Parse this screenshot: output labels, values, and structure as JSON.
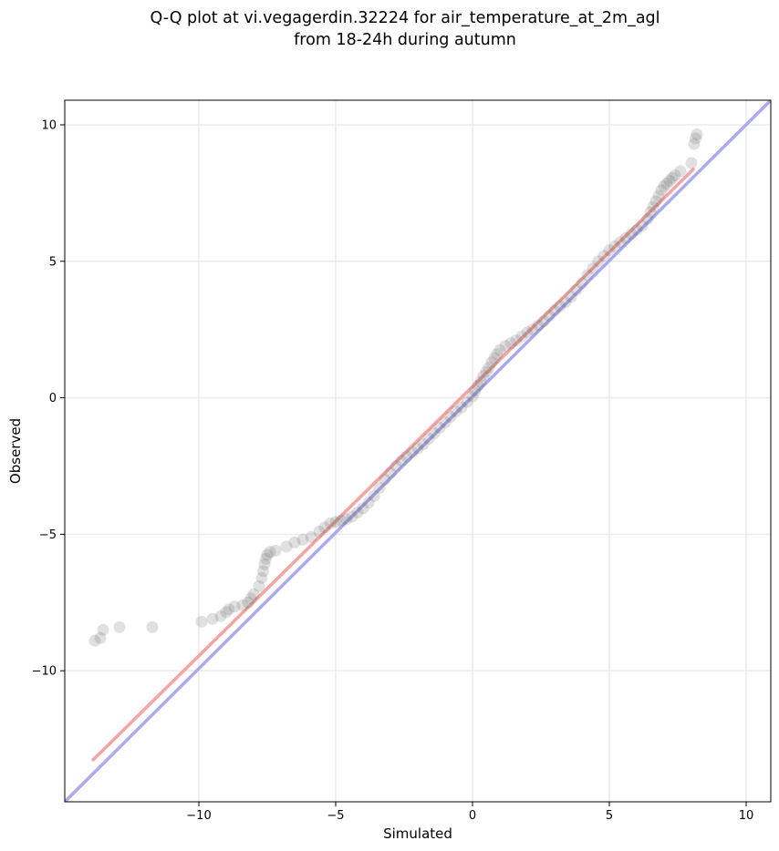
{
  "chart_data": {
    "type": "scatter",
    "title_line1": "Q-Q plot at vi.vegagerdin.32224 for air_temperature_at_2m_agl",
    "title_line2": "from 18-24h during autumn",
    "xlabel": "Simulated",
    "ylabel": "Observed",
    "xlim": [
      -14.9,
      10.9
    ],
    "ylim": [
      -14.8,
      10.9
    ],
    "grid": true,
    "x_ticks": [
      -10,
      -5,
      0,
      5,
      10
    ],
    "x_tick_labels": [
      "−10",
      "−5",
      "0",
      "5",
      "10"
    ],
    "y_ticks": [
      -10,
      -5,
      0,
      5,
      10
    ],
    "y_tick_labels": [
      "−10",
      "−5",
      "0",
      "5",
      "10"
    ],
    "reference_line": {
      "name": "identity",
      "color": "#aaaaf0",
      "points": [
        [
          -14.9,
          -14.8
        ],
        [
          10.9,
          10.9
        ]
      ]
    },
    "fit_line": {
      "name": "fit",
      "color": "#f5a3a3",
      "points": [
        [
          -13.9,
          -13.3
        ],
        [
          8.1,
          8.4
        ]
      ]
    },
    "point_color": "#666666",
    "points": [
      [
        -13.8,
        -8.9
      ],
      [
        -13.6,
        -8.8
      ],
      [
        -13.5,
        -8.5
      ],
      [
        -12.9,
        -8.4
      ],
      [
        -11.7,
        -8.4
      ],
      [
        -9.9,
        -8.2
      ],
      [
        -9.5,
        -8.1
      ],
      [
        -9.2,
        -8.0
      ],
      [
        -9.0,
        -7.85
      ],
      [
        -8.9,
        -7.75
      ],
      [
        -8.7,
        -7.65
      ],
      [
        -8.4,
        -7.6
      ],
      [
        -8.2,
        -7.5
      ],
      [
        -8.1,
        -7.35
      ],
      [
        -8.0,
        -7.2
      ],
      [
        -7.8,
        -6.9
      ],
      [
        -7.7,
        -6.6
      ],
      [
        -7.65,
        -6.35
      ],
      [
        -7.6,
        -6.1
      ],
      [
        -7.55,
        -5.9
      ],
      [
        -7.5,
        -5.75
      ],
      [
        -7.4,
        -5.65
      ],
      [
        -7.2,
        -5.6
      ],
      [
        -6.8,
        -5.45
      ],
      [
        -6.5,
        -5.3
      ],
      [
        -6.2,
        -5.2
      ],
      [
        -5.9,
        -5.1
      ],
      [
        -5.6,
        -4.9
      ],
      [
        -5.4,
        -4.75
      ],
      [
        -5.2,
        -4.6
      ],
      [
        -5.0,
        -4.55
      ],
      [
        -4.8,
        -4.5
      ],
      [
        -4.6,
        -4.45
      ],
      [
        -4.4,
        -4.35
      ],
      [
        -4.2,
        -4.2
      ],
      [
        -4.0,
        -4.05
      ],
      [
        -3.8,
        -3.85
      ],
      [
        -3.6,
        -3.6
      ],
      [
        -3.4,
        -3.3
      ],
      [
        -3.2,
        -3.0
      ],
      [
        -3.0,
        -2.75
      ],
      [
        -2.8,
        -2.5
      ],
      [
        -2.6,
        -2.3
      ],
      [
        -2.4,
        -2.15
      ],
      [
        -2.2,
        -2.0
      ],
      [
        -2.0,
        -1.85
      ],
      [
        -1.8,
        -1.7
      ],
      [
        -1.6,
        -1.5
      ],
      [
        -1.4,
        -1.3
      ],
      [
        -1.2,
        -1.1
      ],
      [
        -1.0,
        -0.9
      ],
      [
        -0.8,
        -0.7
      ],
      [
        -0.6,
        -0.5
      ],
      [
        -0.4,
        -0.35
      ],
      [
        -0.2,
        -0.15
      ],
      [
        0.0,
        0.05
      ],
      [
        0.1,
        0.25
      ],
      [
        0.2,
        0.45
      ],
      [
        0.3,
        0.6
      ],
      [
        0.4,
        0.8
      ],
      [
        0.5,
        0.95
      ],
      [
        0.6,
        1.1
      ],
      [
        0.7,
        1.3
      ],
      [
        0.8,
        1.45
      ],
      [
        0.9,
        1.6
      ],
      [
        1.0,
        1.75
      ],
      [
        1.2,
        1.9
      ],
      [
        1.4,
        2.0
      ],
      [
        1.6,
        2.1
      ],
      [
        1.8,
        2.25
      ],
      [
        2.0,
        2.4
      ],
      [
        2.2,
        2.5
      ],
      [
        2.4,
        2.65
      ],
      [
        2.6,
        2.8
      ],
      [
        2.8,
        3.0
      ],
      [
        3.0,
        3.2
      ],
      [
        3.2,
        3.35
      ],
      [
        3.4,
        3.5
      ],
      [
        3.6,
        3.7
      ],
      [
        3.8,
        3.95
      ],
      [
        4.0,
        4.2
      ],
      [
        4.2,
        4.5
      ],
      [
        4.4,
        4.75
      ],
      [
        4.6,
        5.0
      ],
      [
        4.8,
        5.2
      ],
      [
        5.0,
        5.4
      ],
      [
        5.2,
        5.55
      ],
      [
        5.4,
        5.7
      ],
      [
        5.6,
        5.85
      ],
      [
        5.8,
        6.0
      ],
      [
        6.0,
        6.15
      ],
      [
        6.2,
        6.3
      ],
      [
        6.4,
        6.55
      ],
      [
        6.5,
        6.8
      ],
      [
        6.6,
        7.0
      ],
      [
        6.7,
        7.2
      ],
      [
        6.8,
        7.4
      ],
      [
        6.9,
        7.6
      ],
      [
        7.0,
        7.75
      ],
      [
        7.1,
        7.85
      ],
      [
        7.2,
        7.95
      ],
      [
        7.3,
        8.05
      ],
      [
        7.4,
        8.15
      ],
      [
        7.6,
        8.3
      ],
      [
        8.0,
        8.6
      ],
      [
        8.1,
        9.3
      ],
      [
        8.15,
        9.5
      ],
      [
        8.2,
        9.65
      ]
    ]
  }
}
